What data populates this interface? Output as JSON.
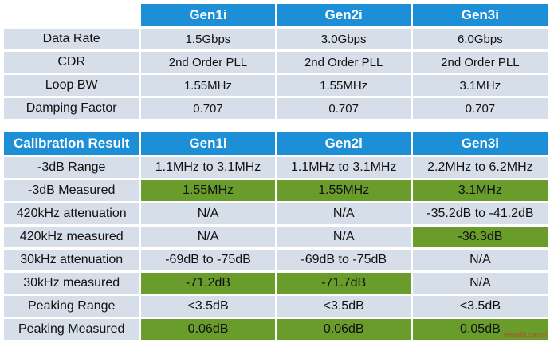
{
  "table1": {
    "headers": [
      "",
      "Gen1i",
      "Gen2i",
      "Gen3i"
    ],
    "rows": [
      {
        "label": "Data Rate",
        "cells": [
          {
            "v": "1.5Gbps"
          },
          {
            "v": "3.0Gbps"
          },
          {
            "v": "6.0Gbps"
          }
        ]
      },
      {
        "label": "CDR",
        "cells": [
          {
            "v": "2nd Order PLL"
          },
          {
            "v": "2nd Order PLL"
          },
          {
            "v": "2nd Order PLL"
          }
        ]
      },
      {
        "label": "Loop BW",
        "cells": [
          {
            "v": "1.55MHz"
          },
          {
            "v": "1.55MHz"
          },
          {
            "v": "3.1MHz"
          }
        ]
      },
      {
        "label": "Damping Factor",
        "cells": [
          {
            "v": "0.707"
          },
          {
            "v": "0.707"
          },
          {
            "v": "0.707"
          }
        ]
      }
    ]
  },
  "table2": {
    "headers": [
      "Calibration Result",
      "Gen1i",
      "Gen2i",
      "Gen3i"
    ],
    "rows": [
      {
        "label": "-3dB Range",
        "cells": [
          {
            "v": "1.1MHz to 3.1MHz"
          },
          {
            "v": "1.1MHz to 3.1MHz"
          },
          {
            "v": "2.2MHz to 6.2MHz"
          }
        ]
      },
      {
        "label": "-3dB Measured",
        "cells": [
          {
            "v": "1.55MHz",
            "hl": true
          },
          {
            "v": "1.55MHz",
            "hl": true
          },
          {
            "v": "3.1MHz",
            "hl": true
          }
        ]
      },
      {
        "label": "420kHz attenuation",
        "cells": [
          {
            "v": "N/A"
          },
          {
            "v": "N/A"
          },
          {
            "v": "-35.2dB to -41.2dB"
          }
        ]
      },
      {
        "label": "420kHz measured",
        "cells": [
          {
            "v": "N/A"
          },
          {
            "v": "N/A"
          },
          {
            "v": "-36.3dB",
            "hl": true
          }
        ]
      },
      {
        "label": "30kHz attenuation",
        "cells": [
          {
            "v": "-69dB to -75dB"
          },
          {
            "v": "-69dB to -75dB"
          },
          {
            "v": "N/A"
          }
        ]
      },
      {
        "label": "30kHz measured",
        "cells": [
          {
            "v": "-71.2dB",
            "hl": true
          },
          {
            "v": "-71.7dB",
            "hl": true
          },
          {
            "v": "N/A"
          }
        ]
      },
      {
        "label": "Peaking Range",
        "cells": [
          {
            "v": "<3.5dB"
          },
          {
            "v": "<3.5dB"
          },
          {
            "v": "<3.5dB"
          }
        ]
      },
      {
        "label": "Peaking Measured",
        "cells": [
          {
            "v": "0.06dB",
            "hl": true
          },
          {
            "v": "0.06dB",
            "hl": true
          },
          {
            "v": "0.05dB",
            "hl": true
          }
        ]
      }
    ]
  },
  "watermark": "eeworld.com.cn"
}
